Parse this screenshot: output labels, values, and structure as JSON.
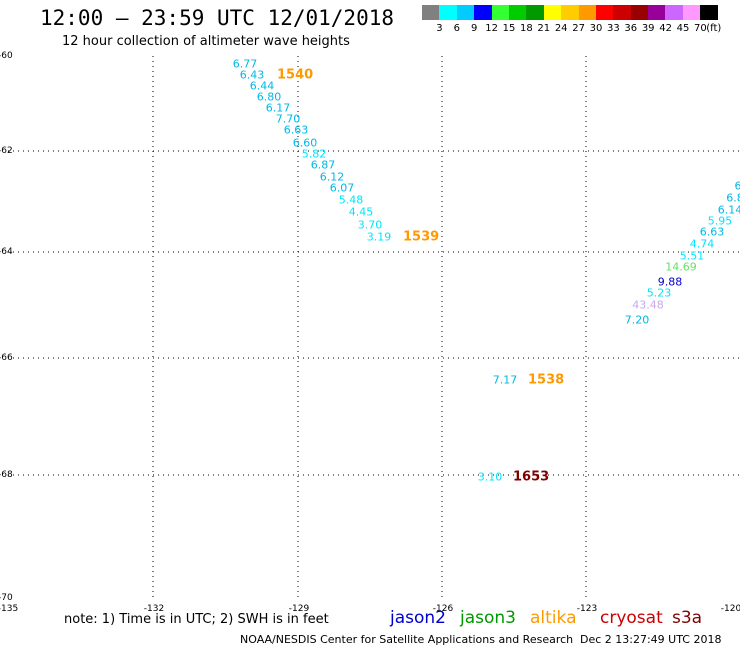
{
  "header": {
    "title": "12:00 – 23:59 UTC 12/01/2018",
    "subtitle": "12 hour collection of altimeter wave heights"
  },
  "scale": {
    "colors": [
      "#808080",
      "#00ffff",
      "#00ccff",
      "#0000ff",
      "#33ff33",
      "#00cc00",
      "#009900",
      "#ffff00",
      "#ffcc00",
      "#ff9900",
      "#ff0000",
      "#cc0000",
      "#990000",
      "#990099",
      "#cc66ff",
      "#ff99ff",
      "#000000"
    ],
    "labels": [
      "3",
      "6",
      "9",
      "12",
      "15",
      "18",
      "21",
      "24",
      "27",
      "30",
      "33",
      "36",
      "39",
      "42",
      "45",
      "70",
      "(ft)"
    ]
  },
  "axes": {
    "y_labels": [
      "-60",
      "-62",
      "-64",
      "-66",
      "-68",
      "-70"
    ],
    "x_labels": [
      "-135",
      "-132",
      "-129",
      "-126",
      "-123",
      "-120"
    ]
  },
  "observations": [
    {
      "v": "6.77",
      "c": "#00b8e6"
    },
    {
      "v": "6.43",
      "c": "#00b8e6"
    },
    {
      "v": "6.44",
      "c": "#00b8e6"
    },
    {
      "v": "6.80",
      "c": "#00b8e6"
    },
    {
      "v": "6.17",
      "c": "#00b8e6"
    },
    {
      "v": "7.70",
      "c": "#00b8e6"
    },
    {
      "v": "6.63",
      "c": "#00b8e6"
    },
    {
      "v": "6.60",
      "c": "#00b8e6"
    },
    {
      "v": "5.82",
      "c": "#00e5ff"
    },
    {
      "v": "6.87",
      "c": "#00b8e6"
    },
    {
      "v": "6.12",
      "c": "#00b8e6"
    },
    {
      "v": "6.07",
      "c": "#00b8e6"
    },
    {
      "v": "5.48",
      "c": "#00e5ff"
    },
    {
      "v": "4.45",
      "c": "#00e5ff"
    },
    {
      "v": "3.70",
      "c": "#00e5ff"
    },
    {
      "v": "3.19",
      "c": "#00e5ff"
    },
    {
      "v": "6",
      "c": "#00b8e6"
    },
    {
      "v": "6.8",
      "c": "#00b8e6"
    },
    {
      "v": "6.14",
      "c": "#00b8e6"
    },
    {
      "v": "5.95",
      "c": "#00e5ff"
    },
    {
      "v": "6.63",
      "c": "#00b8e6"
    },
    {
      "v": "4.74",
      "c": "#00e5ff"
    },
    {
      "v": "5.51",
      "c": "#00e5ff"
    },
    {
      "v": "14.69",
      "c": "#66e066"
    },
    {
      "v": "9.88",
      "c": "#0000cc"
    },
    {
      "v": "5.23",
      "c": "#00e5ff"
    },
    {
      "v": "43.48",
      "c": "#c8a8f0"
    },
    {
      "v": "7.20",
      "c": "#00b8e6"
    },
    {
      "v": "7.17",
      "c": "#00b8e6"
    },
    {
      "v": "3.10",
      "c": "#00e5ff"
    }
  ],
  "passes": [
    {
      "id": "1540",
      "c": "#ff9900"
    },
    {
      "id": "1539",
      "c": "#ff9900"
    },
    {
      "id": "1538",
      "c": "#ff9900"
    },
    {
      "id": "1653",
      "c": "#800000"
    }
  ],
  "footer": {
    "note": "note:  1) Time is in UTC;  2) SWH is in feet",
    "missions": [
      {
        "name": "jason2",
        "c": "#0000cc"
      },
      {
        "name": "jason3",
        "c": "#009900"
      },
      {
        "name": "altika",
        "c": "#ff9900"
      },
      {
        "name": "cryosat",
        "c": "#cc0000"
      },
      {
        "name": "s3a",
        "c": "#800000"
      }
    ],
    "credit": "NOAA/NESDIS Center for Satellite Applications and Research",
    "timestamp": "Dec  2 13:27:49 UTC 2018"
  }
}
